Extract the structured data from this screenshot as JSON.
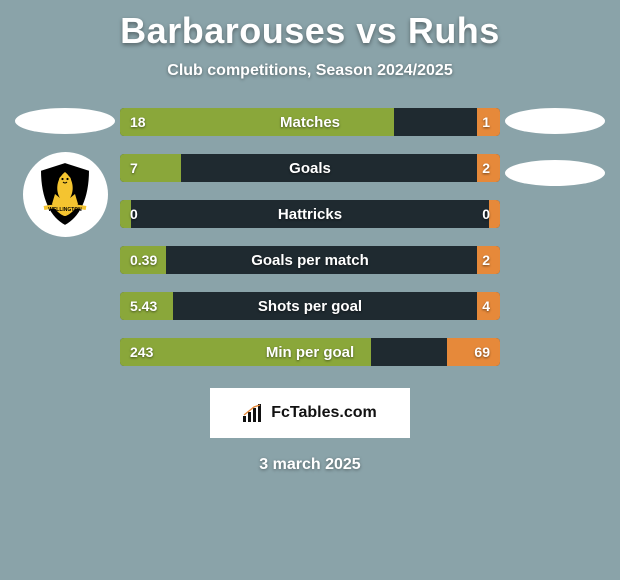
{
  "page": {
    "background_color": "#8aa3a9",
    "text_color": "#ffffff"
  },
  "header": {
    "title": "Barbarouses vs Ruhs",
    "subtitle": "Club competitions, Season 2024/2025"
  },
  "players": {
    "left": {
      "crest_name": "wellington-phoenix"
    },
    "right": {
      "crest_name": "unknown"
    }
  },
  "stats": {
    "bar_bg": "#1f2a30",
    "left_fill_color": "#8aa73a",
    "right_fill_color": "#e6893a",
    "rows": [
      {
        "label": "Matches",
        "left": "18",
        "right": "1",
        "left_pct": 72,
        "right_pct": 6
      },
      {
        "label": "Goals",
        "left": "7",
        "right": "2",
        "left_pct": 16,
        "right_pct": 6
      },
      {
        "label": "Hattricks",
        "left": "0",
        "right": "0",
        "left_pct": 3,
        "right_pct": 3
      },
      {
        "label": "Goals per match",
        "left": "0.39",
        "right": "2",
        "left_pct": 12,
        "right_pct": 6
      },
      {
        "label": "Shots per goal",
        "left": "5.43",
        "right": "4",
        "left_pct": 14,
        "right_pct": 6
      },
      {
        "label": "Min per goal",
        "left": "243",
        "right": "69",
        "left_pct": 66,
        "right_pct": 14
      }
    ]
  },
  "brand": {
    "text": "FcTables.com"
  },
  "footer": {
    "date": "3 march 2025"
  }
}
